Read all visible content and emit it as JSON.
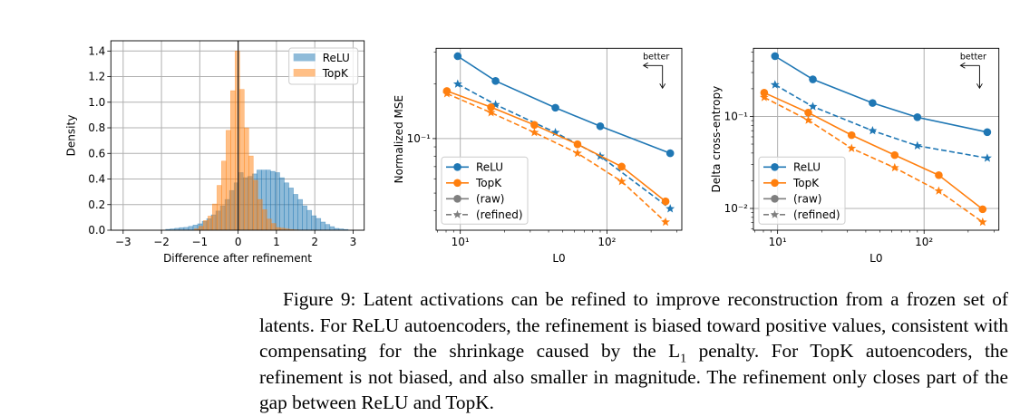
{
  "colors": {
    "relu": "#1f77b4",
    "topk": "#ff7f0e",
    "legend_gray": "#7f7f7f",
    "grid": "#b0b0b0"
  },
  "caption": {
    "label": "Figure 9:",
    "text_before_sub": " Latent activations can be refined to improve reconstruction from a frozen set of latents. For ReLU autoencoders, the refinement is biased toward positive values, consistent with compensating for the shrinkage caused by the L",
    "subscript": "1",
    "text_after_sub": " penalty. For TopK autoencoders, the refinement is not biased, and also smaller in magnitude. The refinement only closes part of the gap between ReLU and TopK."
  },
  "chart_data": [
    {
      "type": "bar",
      "subtype": "histogram",
      "xlabel": "Difference after refinement",
      "ylabel": "Density",
      "xlim": [
        -3.32,
        3.29
      ],
      "ylim": [
        0,
        1.48
      ],
      "xticks": [
        -3,
        -2,
        -1,
        0,
        1,
        2,
        3
      ],
      "xtick_labels": [
        "−3",
        "−2",
        "−1",
        "0",
        "1",
        "2",
        "3"
      ],
      "yticks": [
        0,
        0.2,
        0.4,
        0.6,
        0.8,
        1.0,
        1.2,
        1.4
      ],
      "ytick_labels": [
        "0.0",
        "0.2",
        "0.4",
        "0.6",
        "0.8",
        "1.0",
        "1.2",
        "1.4"
      ],
      "grid": true,
      "vline_at": 0,
      "legend": {
        "placement": "top-right",
        "entries": [
          "ReLU",
          "TopK"
        ]
      },
      "series": [
        {
          "name": "ReLU",
          "bin_start": -1.89,
          "bin_width": 0.119,
          "values": [
            0.007,
            0.01,
            0.015,
            0.02,
            0.022,
            0.03,
            0.04,
            0.05,
            0.07,
            0.09,
            0.12,
            0.15,
            0.19,
            0.24,
            0.31,
            0.37,
            0.45,
            0.41,
            0.42,
            0.44,
            0.47,
            0.47,
            0.47,
            0.46,
            0.45,
            0.41,
            0.37,
            0.33,
            0.28,
            0.24,
            0.19,
            0.155,
            0.113,
            0.092,
            0.064,
            0.045,
            0.028,
            0.014,
            0.01,
            0.006
          ]
        },
        {
          "name": "TopK",
          "bin_start": -1.14,
          "bin_width": 0.118,
          "values": [
            0.01,
            0.03,
            0.075,
            0.11,
            0.205,
            0.35,
            0.54,
            0.78,
            1.09,
            1.4,
            1.1,
            0.8,
            0.58,
            0.39,
            0.24,
            0.16,
            0.087,
            0.052,
            0.021,
            0.016,
            0.01,
            0.005,
            0.003
          ]
        }
      ]
    },
    {
      "type": "line",
      "xlabel": "L0",
      "ylabel": "Normalized MSE",
      "xscale": "log",
      "yscale": "log",
      "xlim": [
        6.84,
        324
      ],
      "ylim": [
        0.0312,
        0.315
      ],
      "xticks": [
        10,
        100
      ],
      "xtick_labels": [
        "10¹",
        "10²"
      ],
      "yticks": [
        0.1
      ],
      "ytick_labels": [
        "10⁻¹"
      ],
      "grid": true,
      "annotation": "better",
      "legend": {
        "placement": "lower-left",
        "entries": [
          "ReLU",
          "TopK",
          "(raw)",
          "(refined)"
        ]
      },
      "series": [
        {
          "name": "ReLU",
          "style": "raw",
          "x": [
            9.6,
            17.4,
            44.5,
            90,
            270
          ],
          "y": [
            0.285,
            0.208,
            0.148,
            0.117,
            0.083
          ]
        },
        {
          "name": "ReLU",
          "style": "refined",
          "x": [
            9.6,
            17.4,
            44.5,
            90,
            270
          ],
          "y": [
            0.2,
            0.154,
            0.108,
            0.08,
            0.041
          ]
        },
        {
          "name": "TopK",
          "style": "raw",
          "x": [
            8.1,
            16.2,
            32,
            63,
            126,
            251
          ],
          "y": [
            0.183,
            0.149,
            0.119,
            0.093,
            0.07,
            0.045
          ]
        },
        {
          "name": "TopK",
          "style": "refined",
          "x": [
            8.1,
            16.2,
            32,
            63,
            126,
            251
          ],
          "y": [
            0.177,
            0.139,
            0.108,
            0.083,
            0.058,
            0.0346
          ]
        }
      ]
    },
    {
      "type": "line",
      "xlabel": "L0",
      "ylabel": "Delta cross-entropy",
      "xscale": "log",
      "yscale": "log",
      "xlim": [
        6.84,
        324
      ],
      "ylim": [
        0.0058,
        0.55
      ],
      "xticks": [
        10,
        100
      ],
      "xtick_labels": [
        "10¹",
        "10²"
      ],
      "yticks": [
        0.01,
        0.1
      ],
      "ytick_labels": [
        "10⁻²",
        "10⁻¹"
      ],
      "grid": true,
      "annotation": "better",
      "legend": {
        "placement": "lower-left",
        "entries": [
          "ReLU",
          "TopK",
          "(raw)",
          "(refined)"
        ]
      },
      "series": [
        {
          "name": "ReLU",
          "style": "raw",
          "x": [
            9.6,
            17.4,
            44.5,
            90,
            270
          ],
          "y": [
            0.452,
            0.253,
            0.14,
            0.098,
            0.0675
          ]
        },
        {
          "name": "ReLU",
          "style": "refined",
          "x": [
            9.6,
            17.4,
            44.5,
            90,
            270
          ],
          "y": [
            0.221,
            0.128,
            0.07,
            0.048,
            0.0353
          ]
        },
        {
          "name": "TopK",
          "style": "raw",
          "x": [
            8.1,
            16.2,
            32,
            63,
            126,
            251
          ],
          "y": [
            0.181,
            0.11,
            0.0626,
            0.038,
            0.023,
            0.0098
          ]
        },
        {
          "name": "TopK",
          "style": "refined",
          "x": [
            8.1,
            16.2,
            32,
            63,
            126,
            251
          ],
          "y": [
            0.161,
            0.091,
            0.045,
            0.0277,
            0.0155,
            0.0071
          ]
        }
      ]
    }
  ]
}
